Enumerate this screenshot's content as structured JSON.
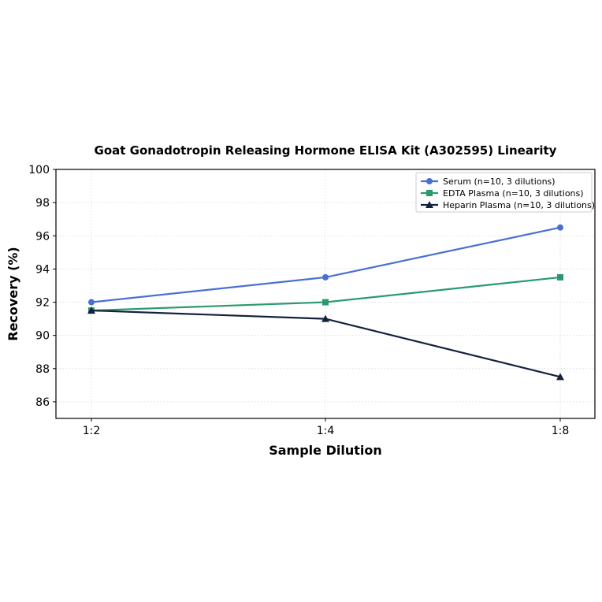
{
  "chart_data": {
    "type": "line",
    "title": "Goat Gonadotropin Releasing Hormone ELISA Kit (A302595) Linearity",
    "xlabel": "Sample Dilution",
    "ylabel": "Recovery (%)",
    "categories": [
      "1:2",
      "1:4",
      "1:8"
    ],
    "ylim": [
      85,
      100
    ],
    "yticks": [
      86,
      88,
      90,
      92,
      94,
      96,
      98,
      100
    ],
    "grid": true,
    "legend_position": "top-right",
    "series": [
      {
        "name": "Serum (n=10, 3 dilutions)",
        "values": [
          92.0,
          93.5,
          96.5
        ],
        "color": "#4a6fd4",
        "marker": "circle"
      },
      {
        "name": "EDTA Plasma (n=10, 3 dilutions)",
        "values": [
          91.5,
          92.0,
          93.5
        ],
        "color": "#2a9a6e",
        "marker": "square"
      },
      {
        "name": "Heparin Plasma (n=10, 3 dilutions)",
        "values": [
          91.5,
          91.0,
          87.5
        ],
        "color": "#14213d",
        "marker": "triangle"
      }
    ]
  }
}
